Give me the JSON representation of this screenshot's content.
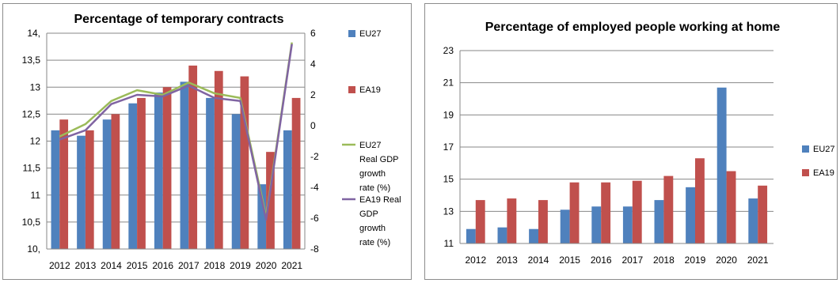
{
  "chart_data": [
    {
      "type": "bar",
      "title": "Percentage of temporary contracts",
      "categories": [
        "2012",
        "2013",
        "2014",
        "2015",
        "2016",
        "2017",
        "2018",
        "2019",
        "2020",
        "2021"
      ],
      "ylim": [
        10,
        14
      ],
      "yticks": [
        "10,",
        "10,5",
        "11",
        "11,5",
        "12",
        "12,5",
        "13",
        "13,5",
        "14,"
      ],
      "y2lim": [
        -8,
        6
      ],
      "y2ticks": [
        "-8",
        "-6",
        "-4",
        "-2",
        "0",
        "2",
        "4",
        "6"
      ],
      "series": [
        {
          "name": "EU27",
          "type": "bar",
          "color": "#4f81bd",
          "values": [
            12.2,
            12.1,
            12.4,
            12.7,
            12.9,
            13.1,
            12.8,
            12.5,
            11.2,
            12.2
          ]
        },
        {
          "name": "EA19",
          "type": "bar",
          "color": "#c0504d",
          "values": [
            12.4,
            12.2,
            12.5,
            12.8,
            13.0,
            13.4,
            13.3,
            13.2,
            11.8,
            12.8
          ]
        },
        {
          "name": "EU27 Real GDP growth rate (%)",
          "type": "line",
          "axis": "right",
          "color": "#9bbb59",
          "values": [
            -0.7,
            0.1,
            1.6,
            2.3,
            2.0,
            2.8,
            2.1,
            1.8,
            -5.9,
            5.4
          ]
        },
        {
          "name": "EA19 Real GDP growth rate (%)",
          "type": "line",
          "axis": "right",
          "color": "#8064a2",
          "values": [
            -0.9,
            -0.3,
            1.4,
            2.0,
            1.9,
            2.6,
            1.8,
            1.6,
            -6.1,
            5.3
          ]
        }
      ],
      "legend": {
        "position": "right",
        "entries": [
          {
            "lines": [
              "EU27"
            ],
            "marker": "square",
            "color": "#4f81bd"
          },
          {
            "lines": [
              "EA19"
            ],
            "marker": "square",
            "color": "#c0504d"
          },
          {
            "lines": [
              "EU27",
              "Real GDP",
              "growth",
              "rate (%)"
            ],
            "marker": "line",
            "color": "#9bbb59"
          },
          {
            "lines": [
              "EA19 Real",
              "GDP",
              "growth",
              "rate (%)"
            ],
            "marker": "line",
            "color": "#8064a2"
          }
        ]
      },
      "grid": "horizontal"
    },
    {
      "type": "bar",
      "title": "Percentage of employed people working at home",
      "categories": [
        "2012",
        "2013",
        "2014",
        "2015",
        "2016",
        "2017",
        "2018",
        "2019",
        "2020",
        "2021"
      ],
      "ylim": [
        11,
        23
      ],
      "yticks": [
        "11",
        "13",
        "15",
        "17",
        "19",
        "21",
        "23"
      ],
      "series": [
        {
          "name": "EU27",
          "color": "#4f81bd",
          "values": [
            11.9,
            12.0,
            11.9,
            13.1,
            13.3,
            13.3,
            13.7,
            14.5,
            20.7,
            13.8
          ]
        },
        {
          "name": "EA19",
          "color": "#c0504d",
          "values": [
            13.7,
            13.8,
            13.7,
            14.8,
            14.8,
            14.9,
            15.2,
            16.3,
            15.5,
            14.6
          ]
        }
      ],
      "legend": {
        "position": "right",
        "entries": [
          {
            "lines": [
              "EU27"
            ],
            "marker": "square",
            "color": "#4f81bd"
          },
          {
            "lines": [
              "EA19"
            ],
            "marker": "square",
            "color": "#c0504d"
          }
        ]
      },
      "grid": "horizontal"
    }
  ]
}
